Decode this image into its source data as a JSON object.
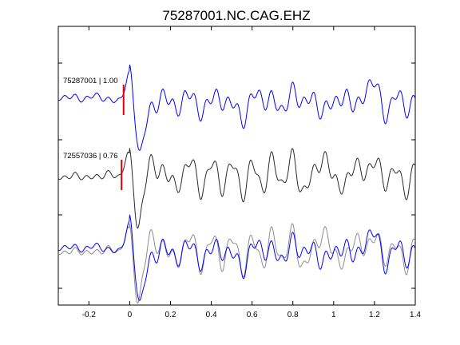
{
  "chart_data": {
    "type": "line",
    "title": "75287001.NC.CAG.EHZ",
    "xlabel": "",
    "ylabel": "",
    "xlim": [
      -0.35,
      1.4
    ],
    "xticks": [
      -0.2,
      0,
      0.2,
      0.4,
      0.6,
      0.8,
      1,
      1.2,
      1.4
    ],
    "xtick_labels": [
      "-0.2",
      "0",
      "0.2",
      "0.4",
      "0.6",
      "0.8",
      "1",
      "1.2",
      "1.4"
    ],
    "grid": false,
    "colors": {
      "master": "#0000ff",
      "correlated": "#2a2a2a",
      "overlay": "#8c8c8c",
      "pick": "#e00000"
    },
    "panels": [
      {
        "label": "75287001 | 1.00",
        "pick_time": -0.03,
        "color": "#0000ff",
        "seed": 11,
        "events": [
          [
            0.05,
            -1.0
          ],
          [
            0.0,
            0.55
          ]
        ],
        "traces": [
          {
            "role": "master",
            "x": [
              -0.35,
              -0.3,
              -0.25,
              -0.2,
              -0.15,
              -0.1,
              -0.05,
              0.0,
              0.05,
              0.1,
              0.15,
              0.2,
              0.25,
              0.3,
              0.35,
              0.4,
              0.45,
              0.5,
              0.55,
              0.6,
              0.65,
              0.7,
              0.75,
              0.8,
              0.85,
              0.9,
              0.95,
              1.0,
              1.05,
              1.1,
              1.15,
              1.2,
              1.25,
              1.3,
              1.35,
              1.4
            ],
            "y": [
              0.1,
              0.2,
              0.1,
              0.15,
              0.2,
              0.05,
              0.1,
              0.5,
              -1.0,
              -0.3,
              0.1,
              0.05,
              -0.2,
              0.4,
              -0.5,
              0.3,
              -0.1,
              0.1,
              -0.6,
              0.2,
              0.1,
              0.05,
              -0.2,
              0.3,
              0.0,
              0.1,
              -0.3,
              0.05,
              0.1,
              0.0,
              0.1,
              0.8,
              -0.5,
              0.3,
              -0.2,
              0.1
            ]
          }
        ]
      },
      {
        "label": "72557036 | 0.76",
        "pick_time": -0.04,
        "color": "#2a2a2a",
        "seed": 23,
        "events": [
          [
            0.04,
            -1.0
          ],
          [
            -0.01,
            0.45
          ]
        ],
        "traces": [
          {
            "role": "correlated",
            "x": [
              -0.35,
              -0.3,
              -0.25,
              -0.2,
              -0.15,
              -0.1,
              -0.05,
              0.0,
              0.05,
              0.1,
              0.15,
              0.2,
              0.25,
              0.3,
              0.35,
              0.4,
              0.45,
              0.5,
              0.55,
              0.6,
              0.65,
              0.7,
              0.75,
              0.8,
              0.85,
              0.9,
              0.95,
              1.0,
              1.05,
              1.1,
              1.15,
              1.2,
              1.25,
              1.3,
              1.35,
              1.4
            ],
            "y": [
              0.0,
              0.02,
              0.05,
              -0.02,
              0.04,
              0.1,
              0.05,
              0.4,
              -1.0,
              0.5,
              0.1,
              0.05,
              -0.3,
              0.7,
              -0.6,
              0.6,
              -0.4,
              0.5,
              -0.5,
              0.4,
              -0.3,
              0.5,
              -0.2,
              0.6,
              -0.5,
              0.2,
              0.5,
              0.1,
              -0.4,
              0.5,
              0.0,
              0.6,
              -0.2,
              0.3,
              -0.4,
              0.3
            ]
          }
        ]
      },
      {
        "label": "",
        "pick_time": null,
        "color": "#0000ff",
        "events": [],
        "traces": [
          {
            "role": "overlay",
            "seed": 23,
            "events": [
              [
                0.04,
                -1.0
              ],
              [
                -0.01,
                0.45
              ]
            ],
            "color": "#8c8c8c",
            "ref_panel": 1
          },
          {
            "role": "master",
            "seed": 11,
            "events": [
              [
                0.05,
                -1.0
              ],
              [
                0.0,
                0.55
              ]
            ],
            "color": "#0000ff",
            "ref_panel": 0
          }
        ]
      }
    ]
  }
}
